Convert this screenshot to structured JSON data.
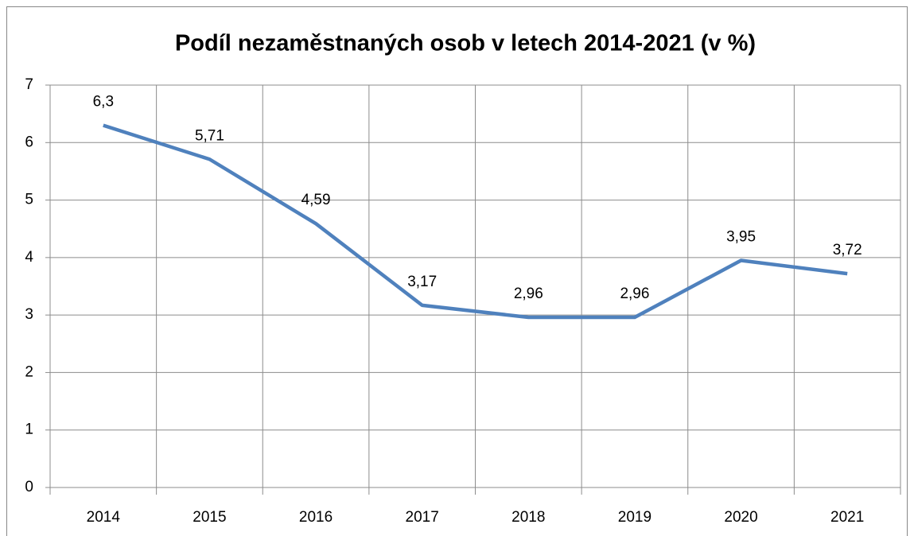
{
  "chart_data": {
    "type": "line",
    "title": "Podíl nezaměstnaných osob v letech 2014-2021 (v %)",
    "categories": [
      "2014",
      "2015",
      "2016",
      "2017",
      "2018",
      "2019",
      "2020",
      "2021"
    ],
    "series": [
      {
        "name": "Podíl nezaměstnaných osob",
        "color": "#4f81bd",
        "values": [
          6.3,
          5.71,
          4.59,
          3.17,
          2.96,
          2.96,
          3.95,
          3.72
        ],
        "value_labels": [
          "6,3",
          "5,71",
          "4,59",
          "3,17",
          "2,96",
          "2,96",
          "3,95",
          "3,72"
        ]
      }
    ],
    "ylim": [
      0,
      7
    ],
    "yticks": [
      0,
      1,
      2,
      3,
      4,
      5,
      6,
      7
    ],
    "grid": true
  }
}
